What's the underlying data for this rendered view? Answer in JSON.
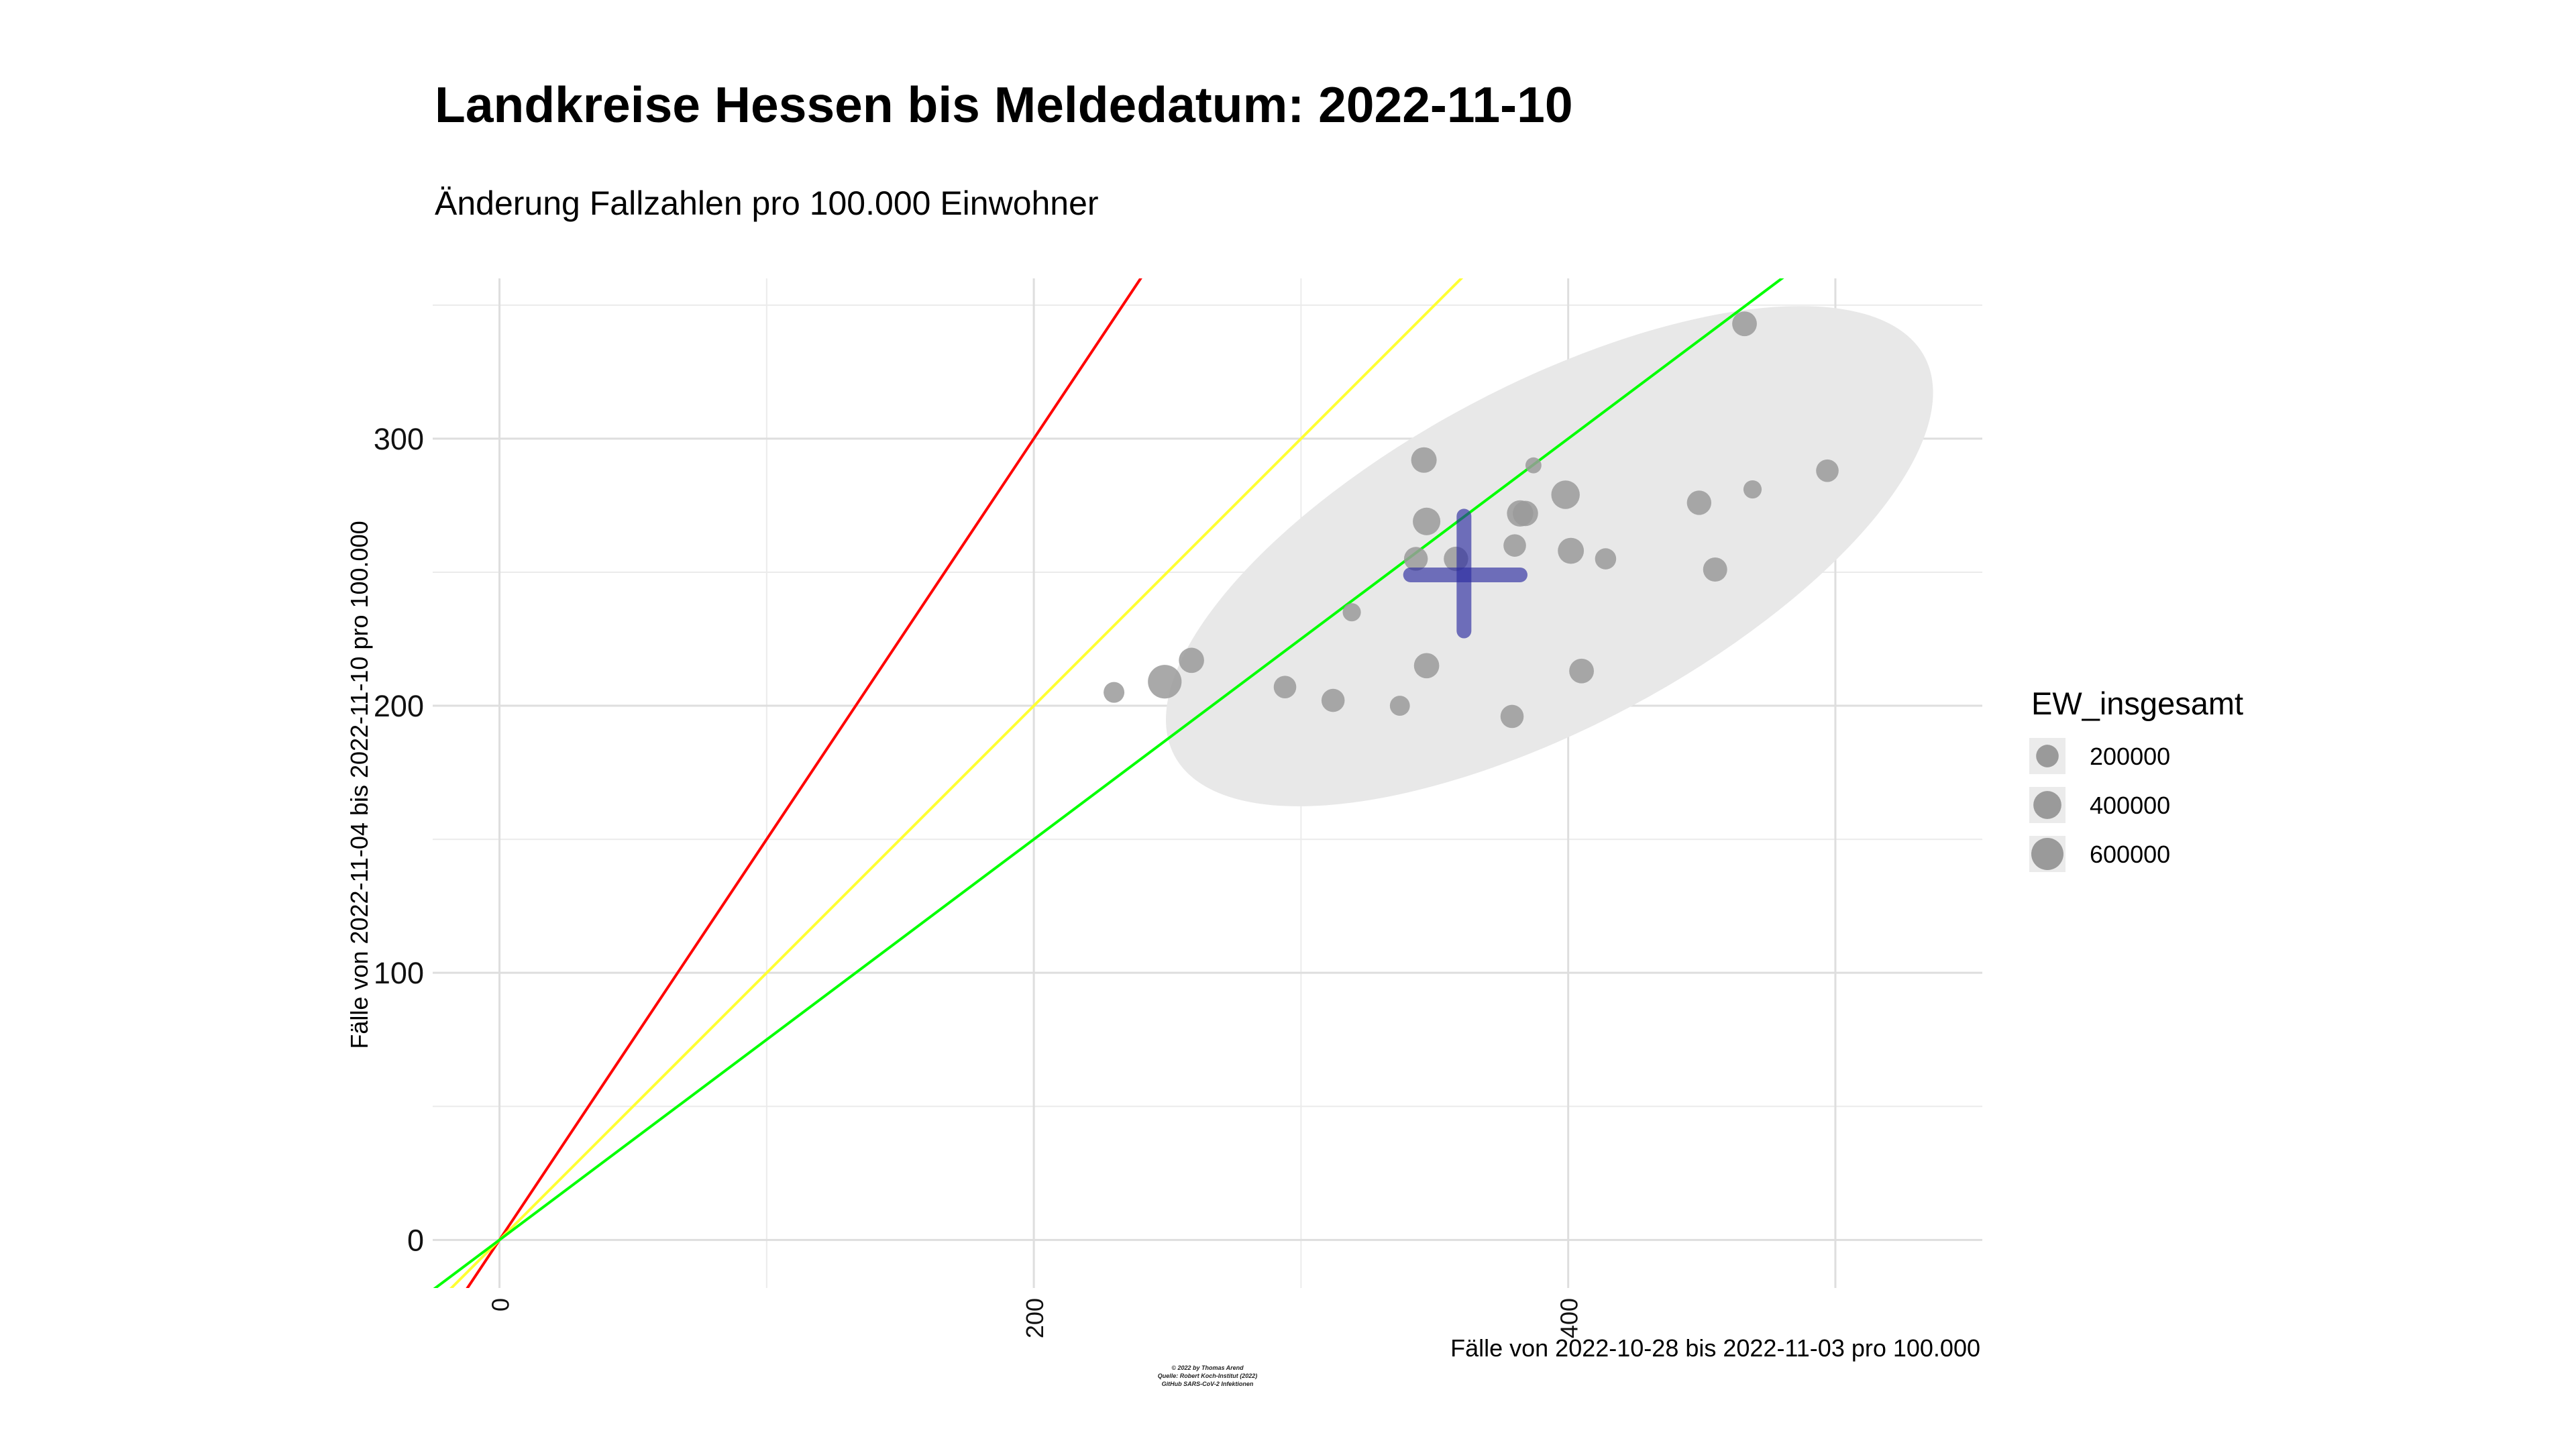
{
  "chart_data": {
    "type": "scatter",
    "title": "Landkreise Hessen bis Meldedatum: 2022-11-10",
    "subtitle": "Änderung Fallzahlen pro 100.000 Einwohner",
    "xlabel": "Fälle von 2022-10-28 bis 2022-11-03 pro 100.000",
    "ylabel": "Fälle von 2022-11-04 bis 2022-11-10 pro 100.000",
    "xlim": [
      -25,
      555
    ],
    "ylim": [
      -18,
      360
    ],
    "x_ticks": [
      0,
      200,
      400
    ],
    "x_tick_labels": [
      "0",
      "200",
      "400"
    ],
    "y_ticks": [
      0,
      100,
      200,
      300
    ],
    "y_tick_labels": [
      "0",
      "100",
      "200",
      "300"
    ],
    "grid": true,
    "legend": {
      "title": "EW_insgesamt",
      "position": "right",
      "entries": [
        {
          "label": "200000",
          "value": 200000
        },
        {
          "label": "400000",
          "value": 400000
        },
        {
          "label": "600000",
          "value": 600000
        }
      ]
    },
    "reference_lines": [
      {
        "slope": 1.5,
        "color": "#ff0000"
      },
      {
        "slope": 1.0,
        "color": "#ffff33"
      },
      {
        "slope": 0.75,
        "color": "#00ff00"
      }
    ],
    "ellipse": {
      "cx": 393,
      "cy": 256,
      "rx": 159,
      "ry": 64,
      "angle_deg": 28,
      "color": "#e8e8e8"
    },
    "mean_marker": {
      "x": 361,
      "y": 249,
      "x_extent": [
        341,
        382
      ],
      "y_extent": [
        228,
        271
      ],
      "color": "#2b2ba0"
    },
    "points": [
      {
        "x": 230,
        "y": 205,
        "pop": 150000
      },
      {
        "x": 249,
        "y": 209,
        "pop": 680000
      },
      {
        "x": 259,
        "y": 217,
        "pop": 290000
      },
      {
        "x": 294,
        "y": 207,
        "pop": 200000
      },
      {
        "x": 312,
        "y": 202,
        "pop": 220000
      },
      {
        "x": 319,
        "y": 235,
        "pop": 90000
      },
      {
        "x": 337,
        "y": 200,
        "pop": 130000
      },
      {
        "x": 343,
        "y": 255,
        "pop": 240000
      },
      {
        "x": 346,
        "y": 292,
        "pop": 300000
      },
      {
        "x": 347,
        "y": 269,
        "pop": 380000
      },
      {
        "x": 347,
        "y": 215,
        "pop": 290000
      },
      {
        "x": 358,
        "y": 255,
        "pop": 260000
      },
      {
        "x": 379,
        "y": 196,
        "pop": 220000
      },
      {
        "x": 380,
        "y": 260,
        "pop": 200000
      },
      {
        "x": 382,
        "y": 272,
        "pop": 330000
      },
      {
        "x": 384,
        "y": 272,
        "pop": 290000
      },
      {
        "x": 387,
        "y": 290,
        "pop": 50000
      },
      {
        "x": 399,
        "y": 279,
        "pop": 420000
      },
      {
        "x": 401,
        "y": 258,
        "pop": 320000
      },
      {
        "x": 405,
        "y": 213,
        "pop": 270000
      },
      {
        "x": 414,
        "y": 255,
        "pop": 160000
      },
      {
        "x": 449,
        "y": 276,
        "pop": 260000
      },
      {
        "x": 455,
        "y": 251,
        "pop": 250000
      },
      {
        "x": 466,
        "y": 343,
        "pop": 270000
      },
      {
        "x": 469,
        "y": 281,
        "pop": 90000
      },
      {
        "x": 497,
        "y": 288,
        "pop": 200000
      }
    ],
    "caption": [
      "© 2022 by Thomas Arend",
      "Quelle: Robert Koch-Institut (2022)",
      "GitHub SARS-CoV-2 Infektionen"
    ]
  }
}
